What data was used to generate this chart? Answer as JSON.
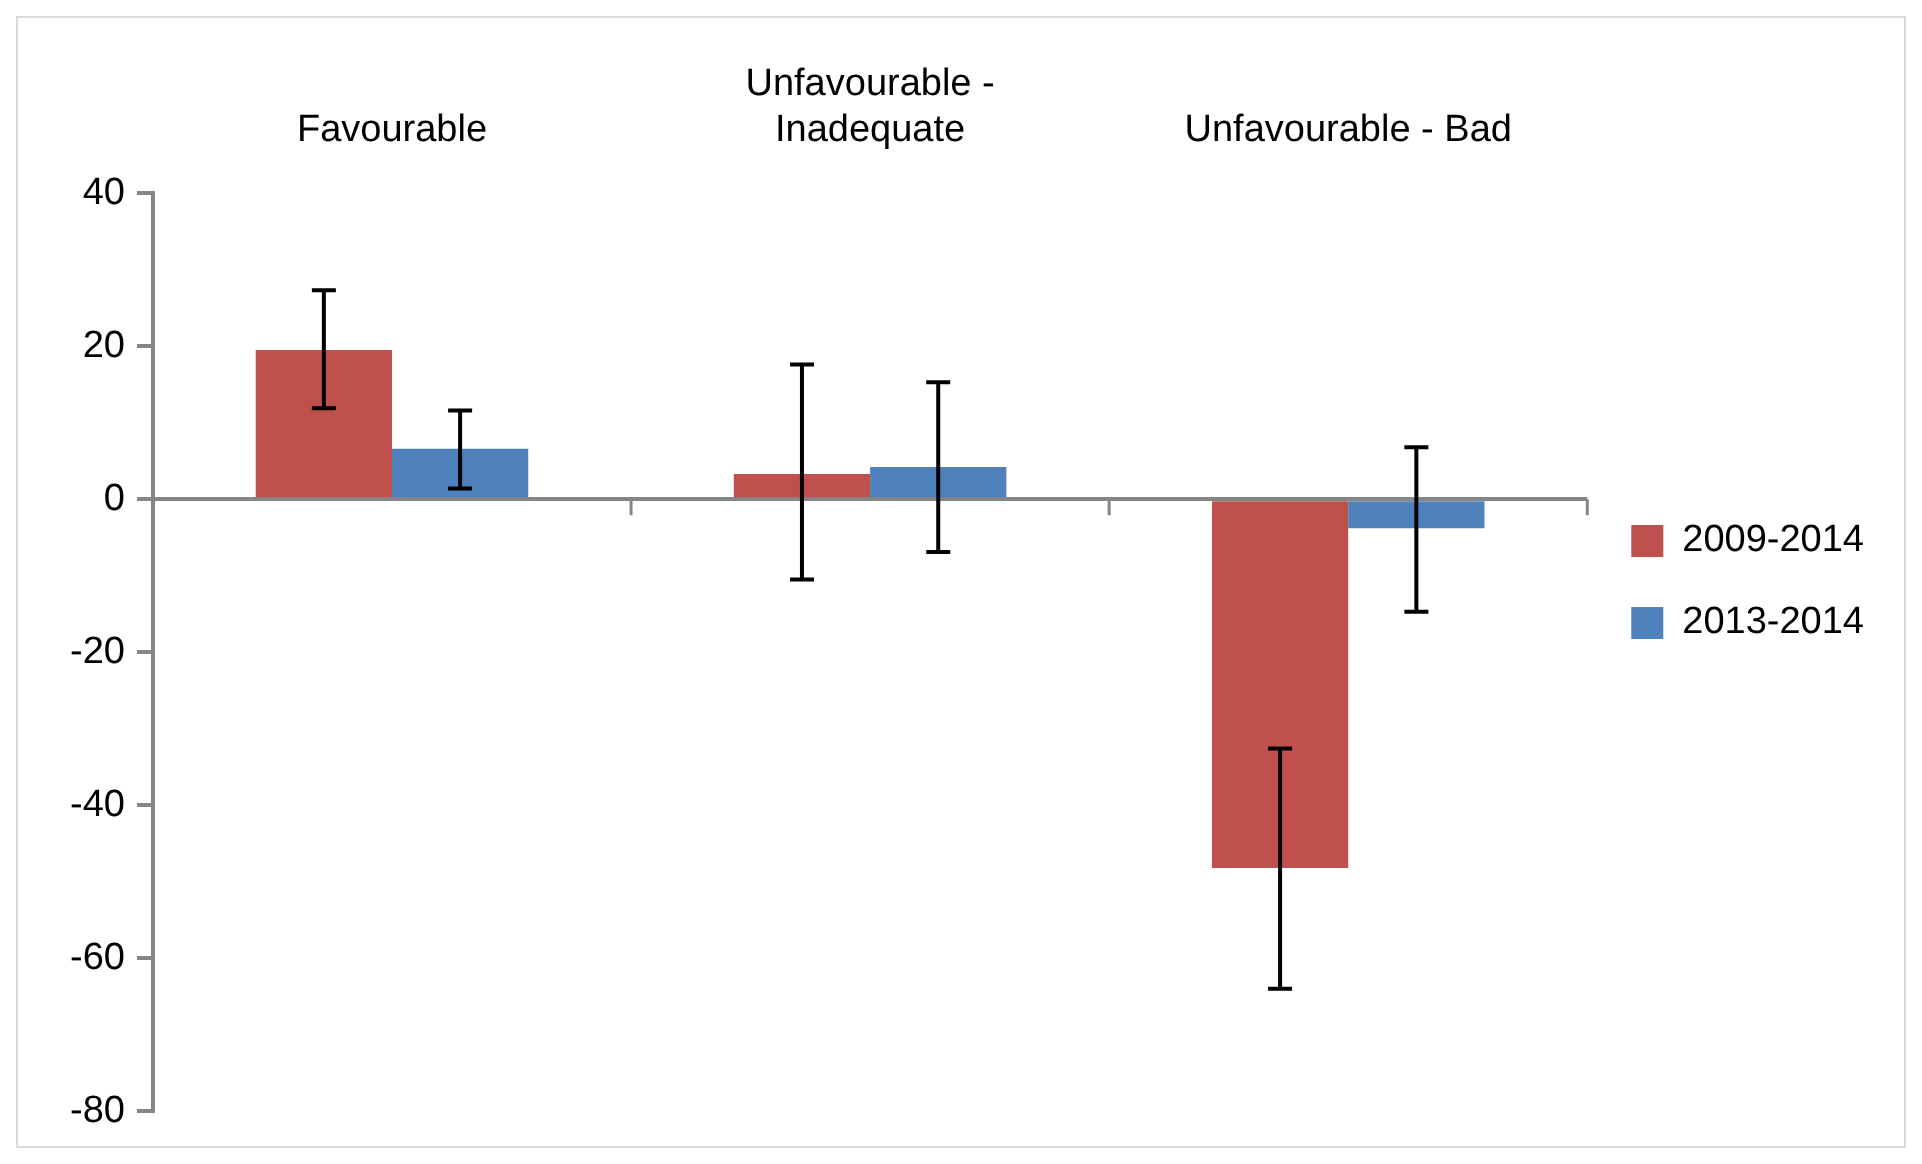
{
  "chart_data": {
    "type": "bar",
    "categories": [
      "Favourable",
      "Unfavourable - Inadequate",
      "Unfavourable - Bad"
    ],
    "series": [
      {
        "name": "2009-2014",
        "color": "#c0504d",
        "values": [
          19.5,
          3.3,
          -48.2
        ],
        "errors": [
          [
            11.9,
            27.3
          ],
          [
            -10.5,
            17.6
          ],
          [
            -64.0,
            -32.6
          ]
        ]
      },
      {
        "name": "2013-2014",
        "color": "#4f81bd",
        "values": [
          6.6,
          4.2,
          -3.8
        ],
        "errors": [
          [
            1.4,
            11.6
          ],
          [
            -6.9,
            15.3
          ],
          [
            -14.7,
            6.8
          ]
        ]
      }
    ],
    "ylim": [
      -80,
      40
    ],
    "yticks": [
      -80,
      -60,
      -40,
      -20,
      0,
      20,
      40
    ],
    "legend": "right"
  }
}
